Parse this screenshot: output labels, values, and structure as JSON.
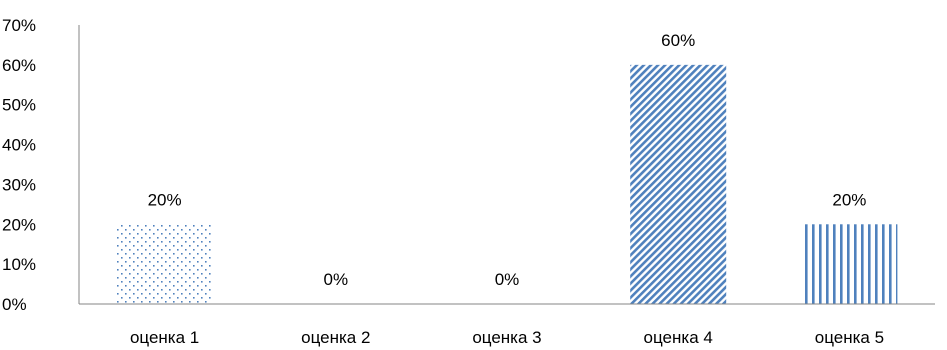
{
  "chart_data": {
    "type": "bar",
    "categories": [
      "оценка 1",
      "оценка 2",
      "оценка 3",
      "оценка 4",
      "оценка 5"
    ],
    "values": [
      20,
      0,
      0,
      60,
      20
    ],
    "data_labels": [
      "20%",
      "0%",
      "0%",
      "60%",
      "20%"
    ],
    "fill_patterns": [
      "dots",
      "none",
      "none",
      "diagonal",
      "vertical"
    ],
    "y_ticks": [
      "0%",
      "10%",
      "20%",
      "30%",
      "40%",
      "50%",
      "60%",
      "70%"
    ],
    "ylim": [
      0,
      70
    ],
    "title": "",
    "xlabel": "",
    "ylabel": "",
    "grid": false,
    "legend": "none",
    "bar_color": "#4f81bd",
    "axis_color": "#868686"
  }
}
